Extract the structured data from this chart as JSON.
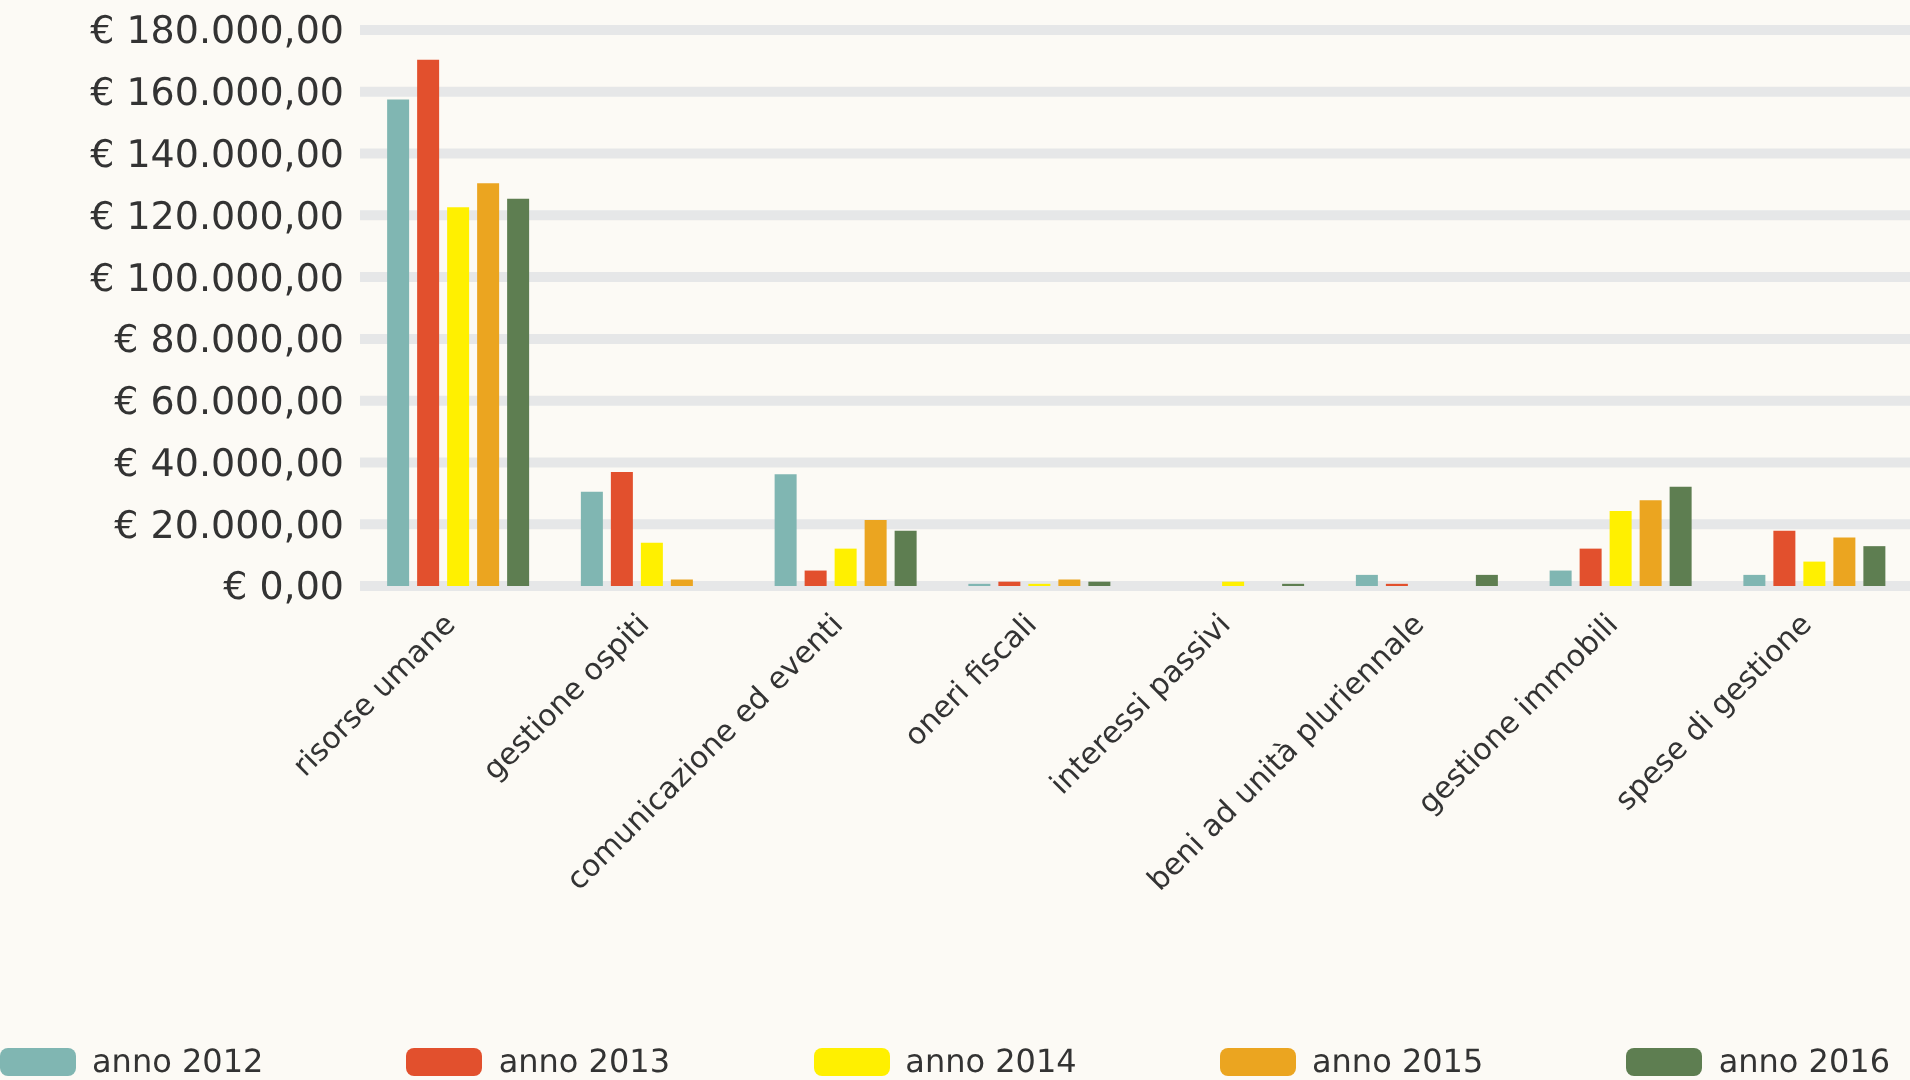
{
  "chart_data": {
    "type": "bar",
    "categories": [
      "risorse umane",
      "gestione ospiti",
      "comunicazione ed eventi",
      "oneri fiscali",
      "interessi passivi",
      "beni ad unità pluriennale",
      "gestione immobili",
      "spese di gestione"
    ],
    "series": [
      {
        "name": "anno 2012",
        "color": "#80b6b2",
        "values": [
          157500,
          30500,
          36200,
          700,
          0,
          3600,
          5000,
          3600
        ]
      },
      {
        "name": "anno 2013",
        "color": "#e2502d",
        "values": [
          170400,
          36900,
          5000,
          1400,
          0,
          700,
          12100,
          17900
        ]
      },
      {
        "name": "anno 2014",
        "color": "#fff000",
        "values": [
          122600,
          14000,
          12100,
          700,
          1400,
          0,
          24300,
          7900
        ]
      },
      {
        "name": "anno 2015",
        "color": "#eba520",
        "values": [
          130400,
          2100,
          21400,
          2100,
          0,
          0,
          27800,
          15700
        ]
      },
      {
        "name": "anno 2016",
        "color": "#5e7e51",
        "values": [
          125400,
          0,
          17900,
          1400,
          700,
          3600,
          32100,
          12900
        ]
      }
    ],
    "ylim": [
      0,
      180000
    ],
    "yticks": [
      {
        "value": 0,
        "label": "€ 0,00"
      },
      {
        "value": 20000,
        "label": "€ 20.000,00"
      },
      {
        "value": 40000,
        "label": "€ 40.000,00"
      },
      {
        "value": 60000,
        "label": "€ 60.000,00"
      },
      {
        "value": 80000,
        "label": "€ 80.000,00"
      },
      {
        "value": 100000,
        "label": "€ 100.000,00"
      },
      {
        "value": 120000,
        "label": "€ 120.000,00"
      },
      {
        "value": 140000,
        "label": "€ 140.000,00"
      },
      {
        "value": 160000,
        "label": "€ 160.000,00"
      },
      {
        "value": 180000,
        "label": "€ 180.000,00"
      }
    ],
    "grid": "y",
    "legend": "bottom"
  }
}
